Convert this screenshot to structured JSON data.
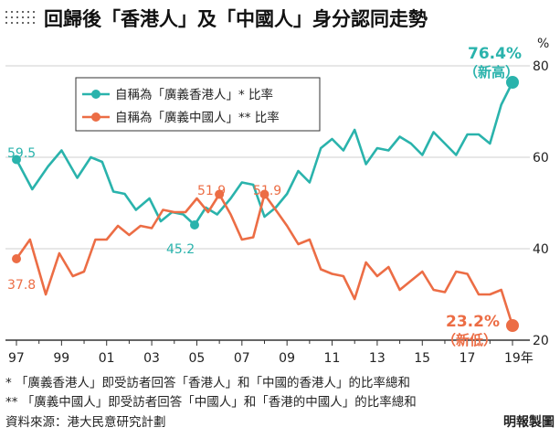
{
  "header": {
    "title": "回歸後「香港人」及「中國人」身分認同走勢"
  },
  "chart_data": {
    "type": "line",
    "title": "回歸後「香港人」及「中國人」身分認同走勢",
    "x_tick_labels": [
      "97",
      "99",
      "01",
      "03",
      "05",
      "07",
      "09",
      "11",
      "13",
      "15",
      "17",
      "19年"
    ],
    "y_axis_unit": "%",
    "y_ticks": [
      20,
      40,
      60,
      80
    ],
    "ylim": [
      20,
      80
    ],
    "xlim": [
      1997,
      2019.3
    ],
    "grid": "horizontal",
    "legend_position": "top-left",
    "series": [
      {
        "name": "自稱為「廣義香港人」* 比率",
        "color": "#2ab3ac",
        "points": [
          [
            1997.0,
            59.5
          ],
          [
            1997.7,
            53.0
          ],
          [
            1998.4,
            58.0
          ],
          [
            1999.0,
            61.5
          ],
          [
            1999.7,
            55.5
          ],
          [
            2000.3,
            60.0
          ],
          [
            2000.8,
            59.0
          ],
          [
            2001.3,
            52.5
          ],
          [
            2001.8,
            52.0
          ],
          [
            2002.3,
            48.5
          ],
          [
            2002.9,
            51.0
          ],
          [
            2003.4,
            46.0
          ],
          [
            2003.9,
            48.0
          ],
          [
            2004.4,
            47.5
          ],
          [
            2004.9,
            45.2
          ],
          [
            2005.4,
            49.0
          ],
          [
            2005.9,
            47.5
          ],
          [
            2006.5,
            51.0
          ],
          [
            2007.0,
            54.5
          ],
          [
            2007.5,
            54.0
          ],
          [
            2008.0,
            47.0
          ],
          [
            2008.5,
            49.0
          ],
          [
            2009.0,
            52.0
          ],
          [
            2009.5,
            57.0
          ],
          [
            2010.0,
            54.5
          ],
          [
            2010.5,
            62.0
          ],
          [
            2011.0,
            64.0
          ],
          [
            2011.5,
            61.5
          ],
          [
            2012.0,
            66.0
          ],
          [
            2012.5,
            58.5
          ],
          [
            2013.0,
            62.0
          ],
          [
            2013.5,
            61.5
          ],
          [
            2014.0,
            64.5
          ],
          [
            2014.5,
            63.0
          ],
          [
            2015.0,
            60.5
          ],
          [
            2015.5,
            65.5
          ],
          [
            2016.0,
            63.0
          ],
          [
            2016.5,
            60.5
          ],
          [
            2017.0,
            65.0
          ],
          [
            2017.5,
            65.0
          ],
          [
            2018.0,
            63.0
          ],
          [
            2018.5,
            71.5
          ],
          [
            2019.0,
            76.4
          ]
        ]
      },
      {
        "name": "自稱為「廣義中國人」** 比率",
        "color": "#ec6d45",
        "points": [
          [
            1997.0,
            37.8
          ],
          [
            1997.6,
            42.0
          ],
          [
            1998.3,
            30.0
          ],
          [
            1998.9,
            39.0
          ],
          [
            1999.5,
            34.0
          ],
          [
            2000.0,
            35.0
          ],
          [
            2000.5,
            42.0
          ],
          [
            2001.0,
            42.0
          ],
          [
            2001.5,
            45.0
          ],
          [
            2002.0,
            43.0
          ],
          [
            2002.5,
            45.0
          ],
          [
            2003.0,
            44.5
          ],
          [
            2003.5,
            48.5
          ],
          [
            2004.0,
            48.0
          ],
          [
            2004.5,
            48.0
          ],
          [
            2005.0,
            51.0
          ],
          [
            2005.5,
            48.0
          ],
          [
            2006.0,
            51.9
          ],
          [
            2006.5,
            47.5
          ],
          [
            2007.0,
            42.0
          ],
          [
            2007.5,
            42.5
          ],
          [
            2008.0,
            51.9
          ],
          [
            2008.5,
            48.5
          ],
          [
            2009.0,
            45.0
          ],
          [
            2009.5,
            41.0
          ],
          [
            2010.0,
            42.0
          ],
          [
            2010.5,
            35.5
          ],
          [
            2011.0,
            34.5
          ],
          [
            2011.5,
            34.0
          ],
          [
            2012.0,
            29.0
          ],
          [
            2012.5,
            37.0
          ],
          [
            2013.0,
            34.0
          ],
          [
            2013.5,
            36.0
          ],
          [
            2014.0,
            31.0
          ],
          [
            2014.5,
            33.0
          ],
          [
            2015.0,
            35.0
          ],
          [
            2015.5,
            31.0
          ],
          [
            2016.0,
            30.5
          ],
          [
            2016.5,
            35.0
          ],
          [
            2017.0,
            34.5
          ],
          [
            2017.5,
            30.0
          ],
          [
            2018.0,
            30.0
          ],
          [
            2018.5,
            31.0
          ],
          [
            2019.0,
            23.2
          ]
        ]
      }
    ],
    "annotations": [
      {
        "text": "59.5",
        "series": 0,
        "x": 1997.0,
        "y": 59.5
      },
      {
        "text": "45.2",
        "series": 0,
        "x": 2004.9,
        "y": 45.2
      },
      {
        "text": "76.4%",
        "series": 0,
        "x": 2019.0,
        "y": 76.4
      },
      {
        "text": "（新高）",
        "series": 0,
        "x": 2019.0,
        "y": 76.4
      },
      {
        "text": "37.8",
        "series": 1,
        "x": 1997.0,
        "y": 37.8
      },
      {
        "text": "51.9",
        "series": 1,
        "x": 2006.0,
        "y": 51.9
      },
      {
        "text": "51.9",
        "series": 1,
        "x": 2008.0,
        "y": 51.9
      },
      {
        "text": "23.2%",
        "series": 1,
        "x": 2019.0,
        "y": 23.2
      },
      {
        "text": "（新低）",
        "series": 1,
        "x": 2019.0,
        "y": 23.2
      }
    ]
  },
  "footnotes": [
    "* 「廣義香港人」即受訪者回答「香港人」和「中國的香港人」的比率總和",
    "** 「廣義中國人」即受訪者回答「中國人」和「香港的中國人」的比率總和"
  ],
  "source": "資料來源：港大民意研究計劃",
  "credit": "明報製圖"
}
